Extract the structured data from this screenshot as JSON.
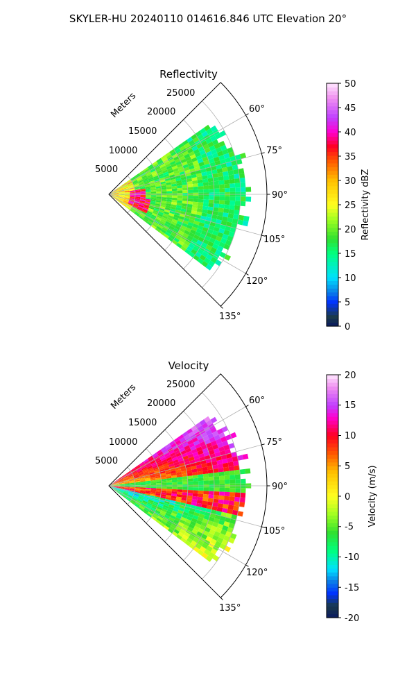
{
  "suptitle": "SKYLER-HU  20240110  014616.846 UTC Elevation 20°",
  "panels": [
    {
      "title": "Reflectivity",
      "range_label": "Meters",
      "range_ticks": [
        "5000",
        "10000",
        "15000",
        "20000",
        "25000"
      ],
      "azimuth_ticks": [
        "60°",
        "75°",
        "90°",
        "105°",
        "120°",
        "135°"
      ],
      "colorbar": {
        "label": "Reflectivity dBZ",
        "min": 0,
        "max": 50,
        "ticks": [
          "0",
          "5",
          "10",
          "15",
          "20",
          "25",
          "30",
          "35",
          "40",
          "45",
          "50"
        ]
      }
    },
    {
      "title": "Velocity",
      "range_label": "Meters",
      "range_ticks": [
        "5000",
        "10000",
        "15000",
        "20000",
        "25000"
      ],
      "azimuth_ticks": [
        "60°",
        "75°",
        "90°",
        "105°",
        "120°",
        "135°"
      ],
      "colorbar": {
        "label": "Velocity (m/s)",
        "min": -20,
        "max": 20,
        "ticks": [
          "-20",
          "-15",
          "-10",
          "-5",
          "0",
          "5",
          "10",
          "15",
          "20"
        ]
      }
    }
  ],
  "chart_data": [
    {
      "type": "heatmap",
      "title": "Reflectivity",
      "projection": "polar sector",
      "theta_range_deg": [
        45,
        135
      ],
      "r_range_m": [
        0,
        30000
      ],
      "r_ticks": [
        5000,
        10000,
        15000,
        20000,
        25000
      ],
      "theta_ticks_deg": [
        60,
        75,
        90,
        105,
        120,
        135
      ],
      "grid": true,
      "colorbar_label": "Reflectivity dBZ",
      "vmin": 0,
      "vmax": 50,
      "colorscale_stops": [
        {
          "value": 0,
          "color": "#0a1a60"
        },
        {
          "value": 2,
          "color": "#1a3a4a"
        },
        {
          "value": 5,
          "color": "#0032ff"
        },
        {
          "value": 7,
          "color": "#0a7de8"
        },
        {
          "value": 10,
          "color": "#00e0ff"
        },
        {
          "value": 15,
          "color": "#00ff80"
        },
        {
          "value": 18,
          "color": "#30e030"
        },
        {
          "value": 22,
          "color": "#a0ff20"
        },
        {
          "value": 25,
          "color": "#ffff20"
        },
        {
          "value": 30,
          "color": "#ffc000"
        },
        {
          "value": 34,
          "color": "#ff5a00"
        },
        {
          "value": 37,
          "color": "#ff0020"
        },
        {
          "value": 40,
          "color": "#ff00d0"
        },
        {
          "value": 43,
          "color": "#c040ff"
        },
        {
          "value": 47,
          "color": "#f090f0"
        },
        {
          "value": 50,
          "color": "#ffe6ff"
        }
      ],
      "echo_extent": {
        "theta_deg": [
          55,
          127
        ],
        "r_max_m": [
          22000,
          27000
        ]
      }
    },
    {
      "type": "heatmap",
      "title": "Velocity",
      "projection": "polar sector",
      "theta_range_deg": [
        45,
        135
      ],
      "r_range_m": [
        0,
        30000
      ],
      "r_ticks": [
        5000,
        10000,
        15000,
        20000,
        25000
      ],
      "theta_ticks_deg": [
        60,
        75,
        90,
        105,
        120,
        135
      ],
      "grid": true,
      "colorbar_label": "Velocity (m/s)",
      "vmin": -20,
      "vmax": 20,
      "colorscale_stops": [
        {
          "value": -20,
          "color": "#0a1a60"
        },
        {
          "value": -18,
          "color": "#1a3a4a"
        },
        {
          "value": -16,
          "color": "#0032ff"
        },
        {
          "value": -14,
          "color": "#0a7de8"
        },
        {
          "value": -12,
          "color": "#00e0ff"
        },
        {
          "value": -9,
          "color": "#00ff80"
        },
        {
          "value": -6,
          "color": "#30e030"
        },
        {
          "value": -3,
          "color": "#a0ff20"
        },
        {
          "value": 0,
          "color": "#ffff20"
        },
        {
          "value": 4,
          "color": "#ffc000"
        },
        {
          "value": 7,
          "color": "#ff5a00"
        },
        {
          "value": 10,
          "color": "#ff0020"
        },
        {
          "value": 13,
          "color": "#ff00d0"
        },
        {
          "value": 15,
          "color": "#c040ff"
        },
        {
          "value": 18,
          "color": "#f090f0"
        },
        {
          "value": 20,
          "color": "#ffe6ff"
        }
      ],
      "echo_extent": {
        "theta_deg": [
          55,
          127
        ],
        "r_max_m": [
          22000,
          27000
        ]
      }
    }
  ]
}
